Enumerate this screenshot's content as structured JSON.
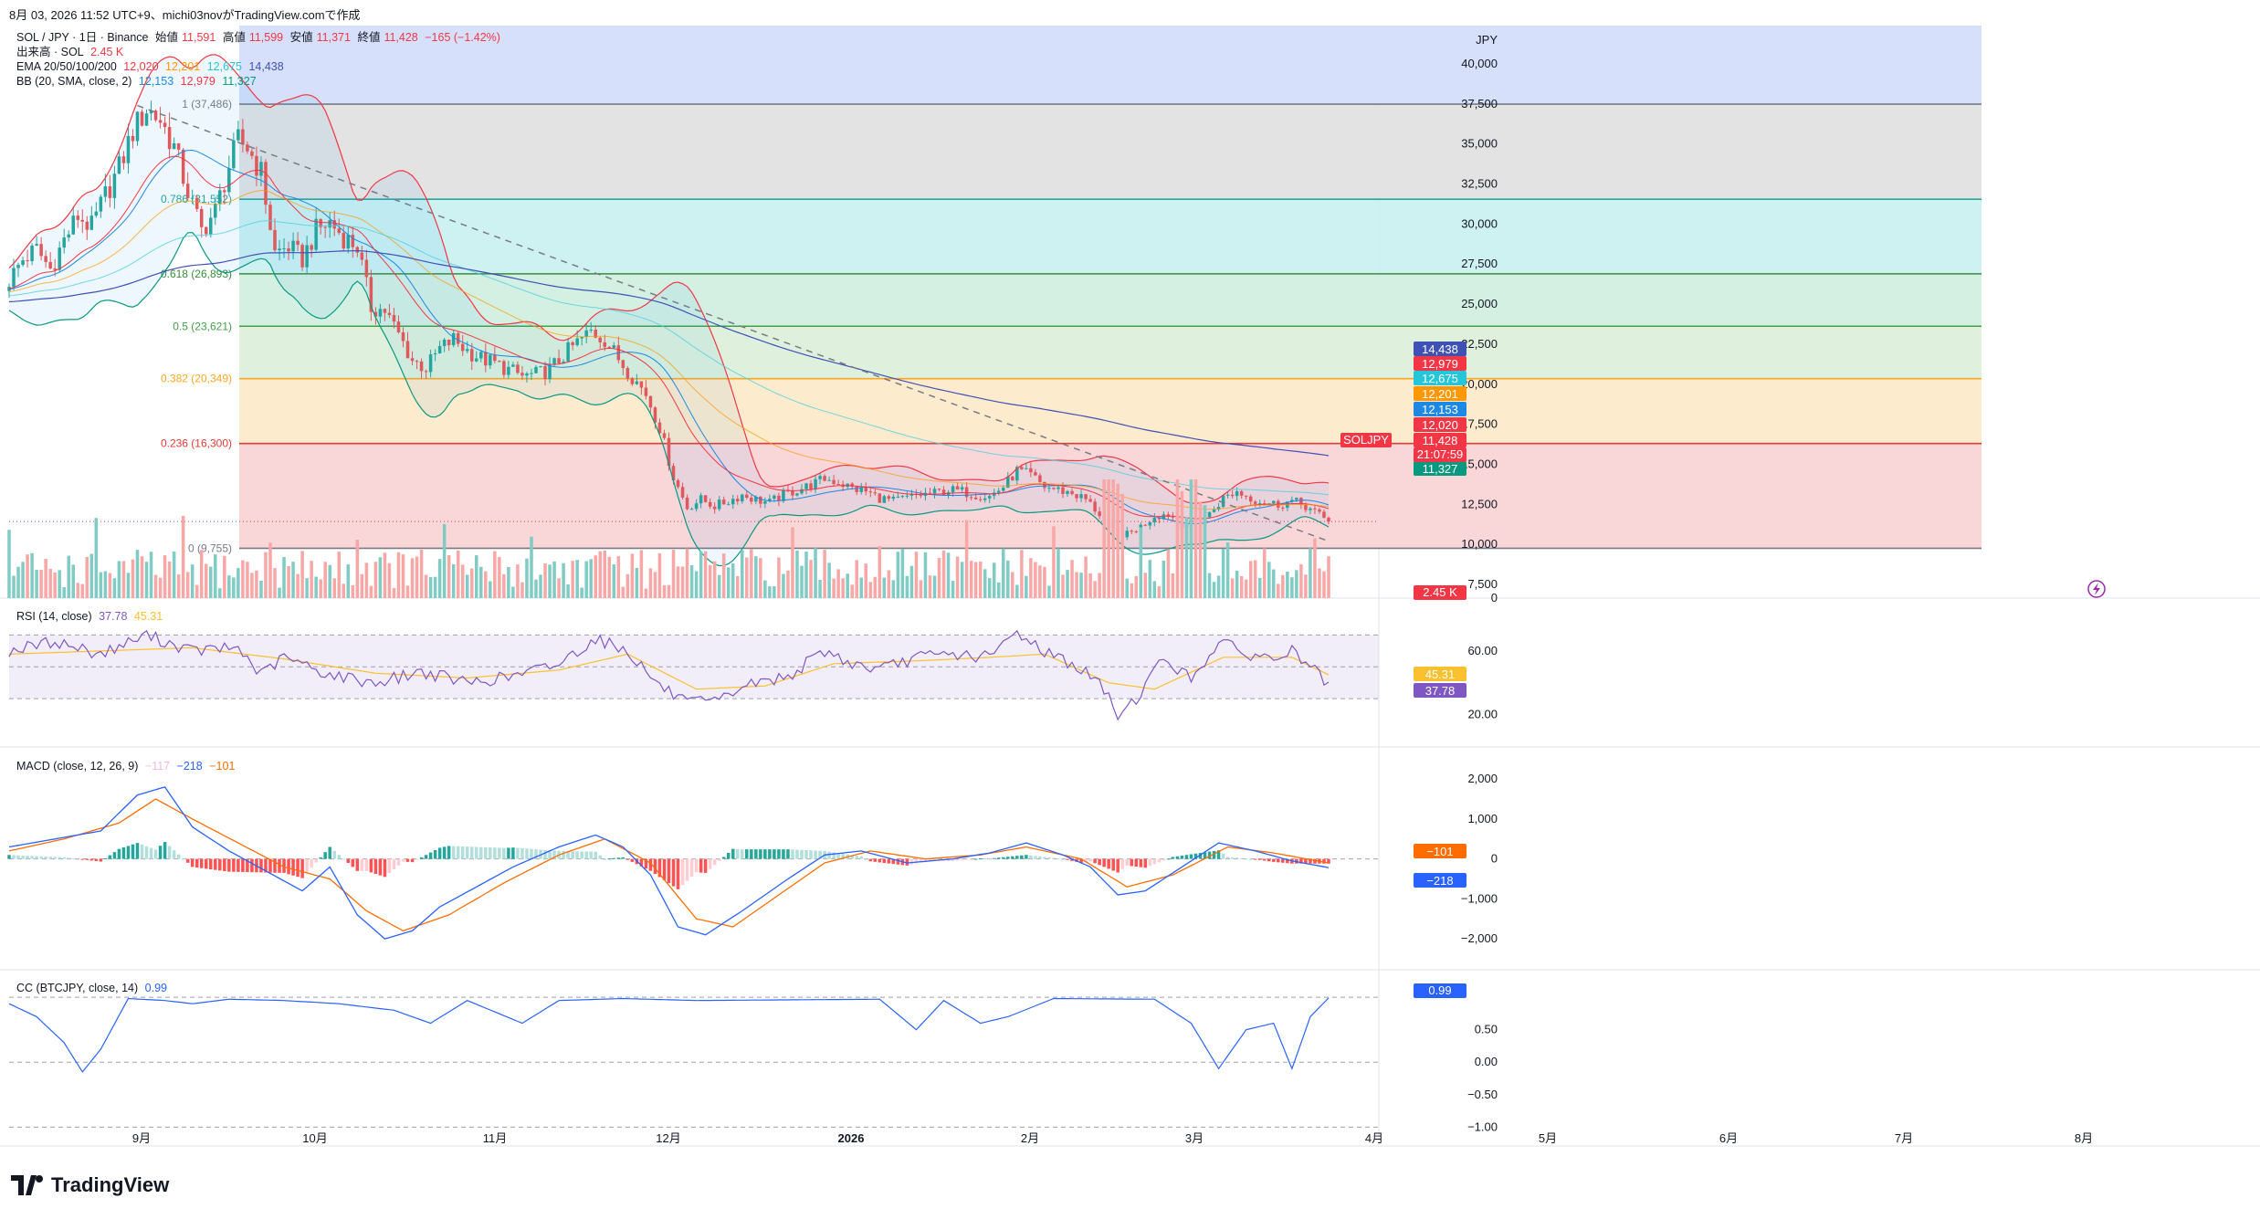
{
  "header": {
    "text": "8月 03, 2026 11:52 UTC+9、michi03novがTradingView.comで作成"
  },
  "symbol_line": {
    "name": "SOL / JPY · 1日 · Binance",
    "open_label": "始値",
    "open": "11,591",
    "high_label": "高値",
    "high": "11,599",
    "low_label": "安値",
    "low": "11,371",
    "close_label": "終値",
    "close": "11,428",
    "change": "−165 (−1.42%)"
  },
  "volume_line": {
    "label": "出来高 · SOL",
    "value": "2.45 K"
  },
  "ema_line": {
    "label": "EMA 20/50/100/200",
    "v20": "12,020",
    "v50": "12,201",
    "v100": "12,675",
    "v200": "14,438"
  },
  "bb_line": {
    "label": "BB (20, SMA, close, 2)",
    "basis": "12,153",
    "upper": "12,979",
    "lower": "11,327"
  },
  "rsi_line": {
    "label": "RSI (14, close)",
    "rsi": "37.78",
    "ma": "45.31"
  },
  "macd_line": {
    "label": "MACD (close, 12, 26, 9)",
    "hist": "−117",
    "macd": "−218",
    "signal": "−101"
  },
  "cc_line": {
    "label": "CC (BTCJPY, close, 14)",
    "value": "0.99"
  },
  "currency": "JPY",
  "symbol_tag": "SOLJPY",
  "countdown": "21:07:59",
  "logo": "TradingView",
  "colors": {
    "up": "#26a69a",
    "down": "#ef5350",
    "ema20": "#f23645",
    "ema50": "#ff9800",
    "ema100": "#4dd0e1",
    "ema200": "#3f51b5",
    "bb": "#1e88e5",
    "rsi": "#7e57c2",
    "rsi_ma": "#fbc02d",
    "macd": "#2962ff",
    "signal": "#ff6d00",
    "cc": "#2962ff"
  },
  "chart_data": [
    {
      "type": "candlestick",
      "pane": "price",
      "ylim": [
        7500,
        40000
      ],
      "yticks": [
        "7,500",
        "10,000",
        "12,500",
        "15,000",
        "17,500",
        "20,000",
        "22,500",
        "25,000",
        "27,500",
        "30,000",
        "32,500",
        "35,000",
        "37,500",
        "40,000"
      ],
      "x_labels": [
        "9月",
        "10月",
        "11月",
        "12月",
        "2026",
        "2月",
        "3月",
        "4月",
        "5月",
        "6月",
        "7月",
        "8月"
      ],
      "fib_levels": [
        {
          "label": "1 (37,486)",
          "value": 37486,
          "color": "#787b86",
          "fill": "#e0e0e0"
        },
        {
          "label": "0.786 (31,552)",
          "value": 31552,
          "color": "#26a69a",
          "fill": "#c9eff0"
        },
        {
          "label": "0.618 (26,893)",
          "value": 26893,
          "color": "#388e3c",
          "fill": "#cfeee0"
        },
        {
          "label": "0.5 (23,621)",
          "value": 23621,
          "color": "#43a047",
          "fill": "#dcefd8"
        },
        {
          "label": "0.382 (20,349)",
          "value": 20349,
          "color": "#f9a825",
          "fill": "#fde9c8"
        },
        {
          "label": "0.236 (16,300)",
          "value": 16300,
          "color": "#e53935",
          "fill": "#f8d3d5"
        },
        {
          "label": "0 (9,755)",
          "value": 9755,
          "color": "#787b86",
          "fill": null
        }
      ],
      "close_series": [
        [
          0,
          26500
        ],
        [
          3,
          27800
        ],
        [
          6,
          28400
        ],
        [
          9,
          27200
        ],
        [
          12,
          29000
        ],
        [
          15,
          30500
        ],
        [
          18,
          29800
        ],
        [
          21,
          31800
        ],
        [
          24,
          33500
        ],
        [
          27,
          35800
        ],
        [
          30,
          37200
        ],
        [
          33,
          36500
        ],
        [
          36,
          34800
        ],
        [
          39,
          32000
        ],
        [
          42,
          29600
        ],
        [
          45,
          30800
        ],
        [
          48,
          33600
        ],
        [
          50,
          35200
        ],
        [
          52,
          34800
        ],
        [
          55,
          33200
        ],
        [
          58,
          28200
        ],
        [
          61,
          28600
        ],
        [
          64,
          27800
        ],
        [
          67,
          29600
        ],
        [
          70,
          30100
        ],
        [
          73,
          29200
        ],
        [
          76,
          28600
        ],
        [
          79,
          24800
        ],
        [
          82,
          24600
        ],
        [
          85,
          23100
        ],
        [
          88,
          21500
        ],
        [
          91,
          21000
        ],
        [
          94,
          22200
        ],
        [
          97,
          22800
        ],
        [
          100,
          22100
        ],
        [
          103,
          21600
        ],
        [
          106,
          21300
        ],
        [
          109,
          20900
        ],
        [
          112,
          20500
        ],
        [
          115,
          20600
        ],
        [
          118,
          20900
        ],
        [
          121,
          21800
        ],
        [
          124,
          22600
        ],
        [
          127,
          23300
        ],
        [
          130,
          22800
        ],
        [
          133,
          21600
        ],
        [
          136,
          20500
        ],
        [
          139,
          19400
        ],
        [
          142,
          17300
        ],
        [
          145,
          14200
        ],
        [
          148,
          12300
        ],
        [
          151,
          12800
        ],
        [
          154,
          12400
        ],
        [
          157,
          12700
        ],
        [
          160,
          13100
        ],
        [
          163,
          12800
        ],
        [
          166,
          12600
        ],
        [
          169,
          13100
        ],
        [
          172,
          13400
        ],
        [
          175,
          13700
        ],
        [
          178,
          14100
        ],
        [
          181,
          13900
        ],
        [
          184,
          13500
        ],
        [
          187,
          13300
        ],
        [
          190,
          12900
        ],
        [
          193,
          12700
        ],
        [
          196,
          12900
        ],
        [
          199,
          13100
        ],
        [
          202,
          13200
        ],
        [
          205,
          13400
        ],
        [
          208,
          13300
        ],
        [
          211,
          13100
        ],
        [
          214,
          13000
        ],
        [
          217,
          13600
        ],
        [
          220,
          14600
        ],
        [
          223,
          14300
        ],
        [
          226,
          13600
        ],
        [
          229,
          13400
        ],
        [
          232,
          13200
        ],
        [
          235,
          12800
        ],
        [
          238,
          11900
        ],
        [
          241,
          10800
        ],
        [
          244,
          10600
        ],
        [
          247,
          11100
        ],
        [
          250,
          11800
        ],
        [
          253,
          11900
        ],
        [
          256,
          11300
        ],
        [
          259,
          11400
        ],
        [
          262,
          11900
        ],
        [
          265,
          12900
        ],
        [
          268,
          13300
        ],
        [
          271,
          12900
        ],
        [
          274,
          12600
        ],
        [
          277,
          12500
        ],
        [
          280,
          12700
        ],
        [
          283,
          12400
        ],
        [
          286,
          11800
        ],
        [
          288,
          11428
        ]
      ],
      "last_price": 11428,
      "indicator_tags": [
        {
          "value": "14,438",
          "color": "#3f51b5"
        },
        {
          "value": "12,979",
          "color": "#f23645"
        },
        {
          "value": "12,675",
          "color": "#26c6da"
        },
        {
          "value": "12,201",
          "color": "#ff9800"
        },
        {
          "value": "12,153",
          "color": "#1e88e5"
        },
        {
          "value": "12,020",
          "color": "#f23645"
        },
        {
          "value": "11,428",
          "color": "#f23645"
        },
        {
          "value": "11,327",
          "color": "#089981"
        }
      ],
      "volume_tag": "2.45 K"
    },
    {
      "type": "line",
      "pane": "rsi",
      "ylim": [
        10,
        80
      ],
      "yticks": [
        "60.00",
        "20.00"
      ],
      "bands": [
        30,
        70
      ],
      "rsi": [
        [
          0,
          60
        ],
        [
          10,
          66
        ],
        [
          20,
          58
        ],
        [
          30,
          70
        ],
        [
          40,
          60
        ],
        [
          50,
          62
        ],
        [
          55,
          45
        ],
        [
          60,
          56
        ],
        [
          70,
          45
        ],
        [
          80,
          40
        ],
        [
          90,
          47
        ],
        [
          100,
          40
        ],
        [
          110,
          44
        ],
        [
          120,
          52
        ],
        [
          128,
          68
        ],
        [
          135,
          60
        ],
        [
          142,
          38
        ],
        [
          148,
          27
        ],
        [
          155,
          28
        ],
        [
          160,
          38
        ],
        [
          170,
          44
        ],
        [
          178,
          60
        ],
        [
          184,
          52
        ],
        [
          190,
          48
        ],
        [
          198,
          56
        ],
        [
          206,
          58
        ],
        [
          214,
          56
        ],
        [
          220,
          72
        ],
        [
          226,
          60
        ],
        [
          232,
          52
        ],
        [
          238,
          40
        ],
        [
          242,
          20
        ],
        [
          246,
          30
        ],
        [
          252,
          56
        ],
        [
          258,
          42
        ],
        [
          264,
          66
        ],
        [
          270,
          58
        ],
        [
          276,
          55
        ],
        [
          280,
          60
        ],
        [
          284,
          50
        ],
        [
          288,
          38
        ]
      ],
      "rsi_ma": [
        [
          0,
          58
        ],
        [
          20,
          60
        ],
        [
          40,
          62
        ],
        [
          60,
          55
        ],
        [
          80,
          46
        ],
        [
          100,
          43
        ],
        [
          120,
          48
        ],
        [
          135,
          58
        ],
        [
          150,
          36
        ],
        [
          165,
          38
        ],
        [
          180,
          52
        ],
        [
          200,
          54
        ],
        [
          214,
          56
        ],
        [
          226,
          58
        ],
        [
          240,
          40
        ],
        [
          250,
          36
        ],
        [
          265,
          56
        ],
        [
          280,
          56
        ],
        [
          288,
          45
        ]
      ],
      "value_tags": [
        {
          "value": "45.31",
          "color": "#fbc02d"
        },
        {
          "value": "37.78",
          "color": "#7e57c2"
        }
      ]
    },
    {
      "type": "bar+line",
      "pane": "macd",
      "ylim": [
        -2500,
        2300
      ],
      "yticks": [
        "2,000",
        "1,000",
        "0",
        "−1,000",
        "−2,000"
      ],
      "macd": [
        [
          0,
          300
        ],
        [
          10,
          500
        ],
        [
          20,
          700
        ],
        [
          28,
          1600
        ],
        [
          34,
          1800
        ],
        [
          40,
          800
        ],
        [
          48,
          200
        ],
        [
          56,
          -300
        ],
        [
          64,
          -800
        ],
        [
          70,
          -200
        ],
        [
          76,
          -1400
        ],
        [
          82,
          -2000
        ],
        [
          88,
          -1800
        ],
        [
          94,
          -1200
        ],
        [
          102,
          -700
        ],
        [
          110,
          -200
        ],
        [
          120,
          300
        ],
        [
          128,
          600
        ],
        [
          134,
          300
        ],
        [
          140,
          -400
        ],
        [
          146,
          -1700
        ],
        [
          152,
          -1900
        ],
        [
          160,
          -1300
        ],
        [
          170,
          -500
        ],
        [
          178,
          100
        ],
        [
          186,
          200
        ],
        [
          196,
          -100
        ],
        [
          206,
          0
        ],
        [
          214,
          150
        ],
        [
          222,
          400
        ],
        [
          230,
          100
        ],
        [
          236,
          -200
        ],
        [
          242,
          -900
        ],
        [
          248,
          -800
        ],
        [
          256,
          -200
        ],
        [
          264,
          400
        ],
        [
          272,
          200
        ],
        [
          280,
          -50
        ],
        [
          288,
          -218
        ]
      ],
      "signal": [
        [
          0,
          200
        ],
        [
          12,
          500
        ],
        [
          24,
          900
        ],
        [
          32,
          1500
        ],
        [
          40,
          1000
        ],
        [
          50,
          400
        ],
        [
          60,
          -200
        ],
        [
          70,
          -500
        ],
        [
          78,
          -1300
        ],
        [
          86,
          -1800
        ],
        [
          96,
          -1400
        ],
        [
          108,
          -600
        ],
        [
          120,
          100
        ],
        [
          130,
          500
        ],
        [
          140,
          -100
        ],
        [
          150,
          -1500
        ],
        [
          158,
          -1700
        ],
        [
          168,
          -900
        ],
        [
          178,
          -100
        ],
        [
          188,
          200
        ],
        [
          200,
          0
        ],
        [
          212,
          100
        ],
        [
          222,
          300
        ],
        [
          234,
          0
        ],
        [
          244,
          -700
        ],
        [
          254,
          -400
        ],
        [
          266,
          300
        ],
        [
          276,
          150
        ],
        [
          288,
          -101
        ]
      ],
      "value_tags": [
        {
          "value": "−101",
          "color": "#ff6d00"
        },
        {
          "value": "−218",
          "color": "#2962ff"
        }
      ]
    },
    {
      "type": "line",
      "pane": "cc",
      "ylim": [
        -1.15,
        1.1
      ],
      "yticks": [
        "0.50",
        "0.00",
        "−0.50",
        "−1.00"
      ],
      "cc": [
        [
          0,
          0.9
        ],
        [
          6,
          0.7
        ],
        [
          12,
          0.3
        ],
        [
          16,
          -0.15
        ],
        [
          20,
          0.2
        ],
        [
          26,
          0.98
        ],
        [
          34,
          0.95
        ],
        [
          40,
          0.9
        ],
        [
          48,
          0.97
        ],
        [
          60,
          0.95
        ],
        [
          72,
          0.9
        ],
        [
          84,
          0.8
        ],
        [
          92,
          0.6
        ],
        [
          100,
          0.95
        ],
        [
          112,
          0.6
        ],
        [
          120,
          0.95
        ],
        [
          134,
          0.98
        ],
        [
          150,
          0.95
        ],
        [
          170,
          0.96
        ],
        [
          190,
          0.97
        ],
        [
          198,
          0.5
        ],
        [
          204,
          0.95
        ],
        [
          212,
          0.6
        ],
        [
          218,
          0.7
        ],
        [
          228,
          0.98
        ],
        [
          250,
          0.97
        ],
        [
          258,
          0.6
        ],
        [
          264,
          -0.1
        ],
        [
          270,
          0.5
        ],
        [
          276,
          0.6
        ],
        [
          280,
          -0.1
        ],
        [
          284,
          0.7
        ],
        [
          288,
          0.99
        ]
      ],
      "value_tags": [
        {
          "value": "0.99",
          "color": "#2962ff"
        }
      ]
    }
  ]
}
